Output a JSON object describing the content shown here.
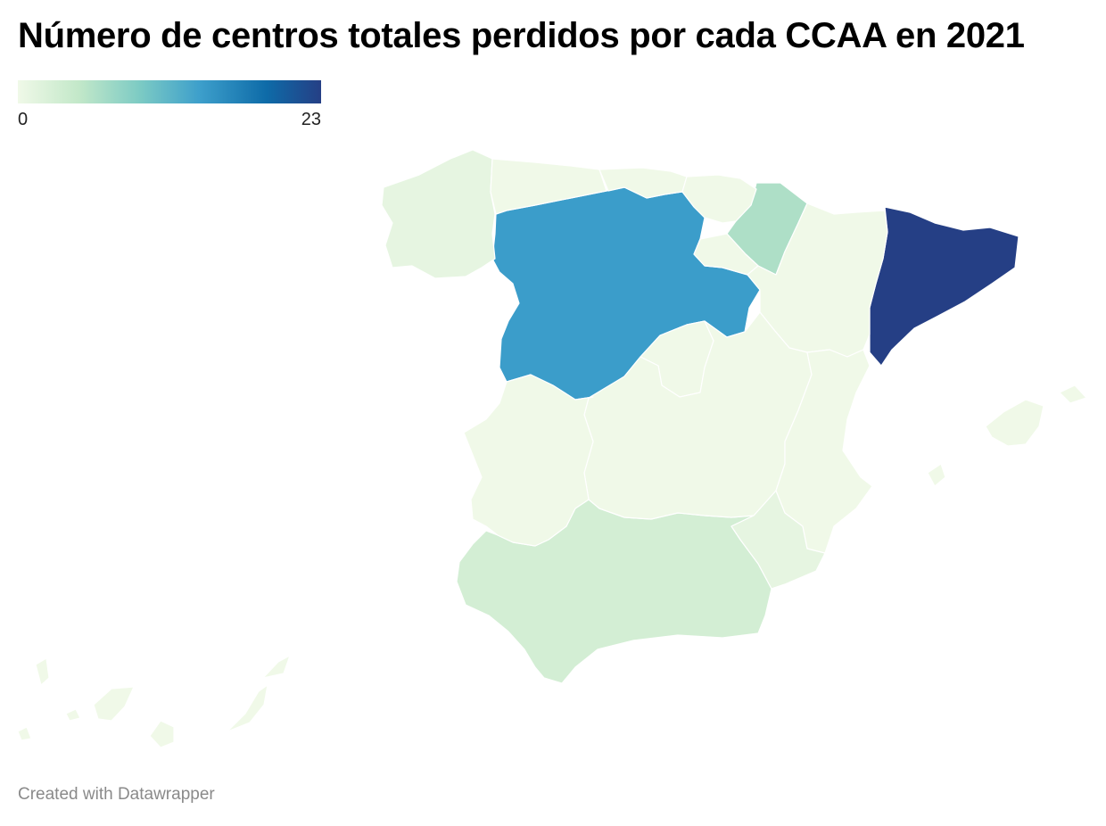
{
  "title": "Número de centros totales perdidos por cada CCAA en 2021",
  "legend": {
    "min_label": "0",
    "max_label": "23",
    "min": 0,
    "max": 23,
    "colors": [
      "#f0f9e8",
      "#c3e8c9",
      "#7dcbc4",
      "#3d9fcb",
      "#0e6ba8",
      "#253f85"
    ]
  },
  "footer": "Created with Datawrapper",
  "chart_data": {
    "type": "choropleth",
    "title": "Número de centros totales perdidos por cada CCAA en 2021",
    "scale": {
      "min": 0,
      "max": 23
    },
    "regions": [
      {
        "name": "Cataluña",
        "value": 23
      },
      {
        "name": "Castilla y León",
        "value": 14
      },
      {
        "name": "Navarra",
        "value": 6
      },
      {
        "name": "Andalucía",
        "value": 3
      },
      {
        "name": "Galicia",
        "value": 1
      },
      {
        "name": "Región de Murcia",
        "value": 1
      },
      {
        "name": "Asturias",
        "value": 0
      },
      {
        "name": "Cantabria",
        "value": 0
      },
      {
        "name": "País Vasco",
        "value": 0
      },
      {
        "name": "La Rioja",
        "value": 0
      },
      {
        "name": "Aragón",
        "value": 0
      },
      {
        "name": "Comunidad de Madrid",
        "value": 0
      },
      {
        "name": "Castilla-La Mancha",
        "value": 0
      },
      {
        "name": "Extremadura",
        "value": 0
      },
      {
        "name": "Comunitat Valenciana",
        "value": 0
      },
      {
        "name": "Illes Balears",
        "value": 0
      },
      {
        "name": "Canarias",
        "value": 0
      }
    ]
  }
}
